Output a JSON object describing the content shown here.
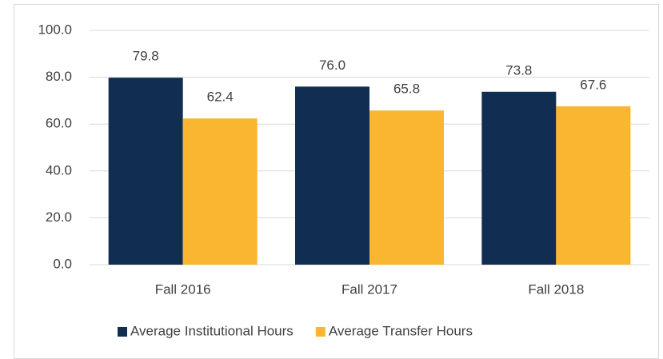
{
  "chart_data": {
    "type": "bar",
    "categories": [
      "Fall 2016",
      "Fall 2017",
      "Fall 2018"
    ],
    "series": [
      {
        "name": "Average Institutional Hours",
        "color": "#112d52",
        "values": [
          79.8,
          76.0,
          73.8
        ],
        "value_labels": [
          "79.8",
          "76.0",
          "73.8"
        ]
      },
      {
        "name": "Average Transfer Hours",
        "color": "#fbb631",
        "values": [
          62.4,
          65.8,
          67.6
        ],
        "value_labels": [
          "62.4",
          "65.8",
          "67.6"
        ]
      }
    ],
    "ylim": [
      0,
      100
    ],
    "yticks": [
      {
        "value": 0,
        "label": "0.0"
      },
      {
        "value": 20,
        "label": "20.0"
      },
      {
        "value": 40,
        "label": "40.0"
      },
      {
        "value": 60,
        "label": "60.0"
      },
      {
        "value": 80,
        "label": "80.0"
      },
      {
        "value": 100,
        "label": "100.0"
      }
    ],
    "grid": true,
    "legend": "bottom"
  }
}
